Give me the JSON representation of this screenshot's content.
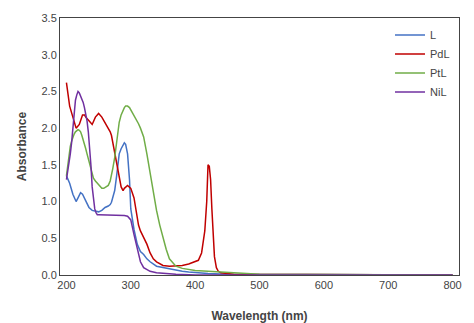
{
  "chart_data": {
    "type": "line",
    "xlabel": "Wavelength (nm)",
    "ylabel": "Absorbance",
    "xlim": [
      190,
      810
    ],
    "ylim": [
      0,
      3.5
    ],
    "xticks": [
      200,
      300,
      400,
      500,
      600,
      700,
      800
    ],
    "yticks": [
      {
        "value": 0,
        "label": "0.0"
      },
      0.5,
      {
        "value": 1,
        "label": "1.0"
      },
      1.5,
      {
        "value": 2,
        "label": "2.0"
      },
      2.5,
      {
        "value": 3,
        "label": "3.0"
      },
      3.5
    ],
    "grid": false,
    "legend": "upper right",
    "series": [
      {
        "name": "L",
        "color": "#4472C4",
        "x": [
          200,
          205,
          210,
          215,
          218,
          220,
          222,
          225,
          228,
          230,
          235,
          240,
          245,
          250,
          255,
          260,
          265,
          268,
          270,
          272,
          275,
          278,
          280,
          282,
          285,
          288,
          290,
          292,
          295,
          298,
          300,
          305,
          310,
          315,
          320,
          325,
          330,
          340,
          350,
          360,
          370,
          380,
          390,
          400,
          420,
          450,
          500,
          600,
          700,
          800
        ],
        "values": [
          1.35,
          1.25,
          1.1,
          1.0,
          1.05,
          1.1,
          1.12,
          1.1,
          1.05,
          1.0,
          0.92,
          0.88,
          0.87,
          0.86,
          0.88,
          0.92,
          0.94,
          0.96,
          0.99,
          1.05,
          1.15,
          1.35,
          1.55,
          1.65,
          1.72,
          1.78,
          1.8,
          1.78,
          1.65,
          1.3,
          0.9,
          0.62,
          0.42,
          0.32,
          0.28,
          0.22,
          0.18,
          0.12,
          0.1,
          0.08,
          0.06,
          0.05,
          0.04,
          0.03,
          0.02,
          0.01,
          0.01,
          0.0,
          0.0,
          0.0
        ]
      },
      {
        "name": "PdL",
        "color": "#C00000",
        "x": [
          200,
          205,
          210,
          215,
          220,
          222,
          225,
          228,
          230,
          235,
          240,
          245,
          250,
          255,
          260,
          265,
          268,
          270,
          272,
          275,
          278,
          280,
          282,
          285,
          288,
          290,
          295,
          300,
          305,
          308,
          310,
          312,
          315,
          318,
          320,
          325,
          330,
          335,
          340,
          345,
          350,
          360,
          370,
          380,
          390,
          395,
          400,
          405,
          410,
          415,
          418,
          420,
          422,
          424,
          426,
          428,
          430,
          433,
          436,
          440,
          445,
          450,
          460,
          470,
          490,
          500,
          550,
          600,
          700,
          800
        ],
        "values": [
          2.62,
          2.3,
          2.15,
          2.0,
          2.05,
          2.1,
          2.18,
          2.18,
          2.15,
          2.1,
          2.05,
          2.15,
          2.2,
          2.15,
          2.08,
          2.0,
          1.95,
          1.9,
          1.8,
          1.65,
          1.5,
          1.4,
          1.3,
          1.2,
          1.15,
          1.18,
          1.22,
          1.18,
          1.05,
          0.88,
          0.75,
          0.68,
          0.6,
          0.55,
          0.52,
          0.42,
          0.3,
          0.22,
          0.18,
          0.15,
          0.13,
          0.12,
          0.12,
          0.13,
          0.15,
          0.17,
          0.18,
          0.2,
          0.3,
          0.6,
          1.0,
          1.5,
          1.48,
          1.3,
          0.9,
          0.5,
          0.25,
          0.1,
          0.05,
          0.03,
          0.02,
          0.02,
          0.01,
          0.01,
          0.01,
          0.0,
          0.0,
          0.0,
          0.0,
          0.0
        ]
      },
      {
        "name": "PtL",
        "color": "#70AD47",
        "x": [
          200,
          202,
          204,
          206,
          208,
          210,
          212,
          214,
          216,
          218,
          220,
          222,
          224,
          226,
          228,
          230,
          232,
          235,
          238,
          240,
          242,
          245,
          248,
          250,
          252,
          255,
          258,
          260,
          262,
          265,
          268,
          270,
          272,
          275,
          278,
          280,
          282,
          285,
          288,
          290,
          292,
          295,
          298,
          300,
          302,
          305,
          308,
          310,
          312,
          315,
          318,
          320,
          325,
          330,
          335,
          340,
          345,
          350,
          355,
          360,
          370,
          380,
          390,
          400,
          420,
          450,
          480,
          500,
          550,
          600,
          700,
          800
        ],
        "values": [
          1.35,
          1.5,
          1.65,
          1.75,
          1.82,
          1.88,
          1.92,
          1.95,
          1.97,
          1.98,
          1.97,
          1.95,
          1.9,
          1.85,
          1.78,
          1.72,
          1.65,
          1.55,
          1.45,
          1.38,
          1.32,
          1.28,
          1.25,
          1.22,
          1.2,
          1.18,
          1.18,
          1.19,
          1.2,
          1.22,
          1.28,
          1.35,
          1.45,
          1.6,
          1.78,
          1.95,
          2.08,
          2.18,
          2.25,
          2.28,
          2.3,
          2.3,
          2.28,
          2.25,
          2.22,
          2.18,
          2.14,
          2.1,
          2.06,
          2.0,
          1.94,
          1.88,
          1.65,
          1.38,
          1.12,
          0.88,
          0.68,
          0.5,
          0.35,
          0.22,
          0.12,
          0.09,
          0.07,
          0.06,
          0.05,
          0.04,
          0.02,
          0.01,
          0.01,
          0.0,
          0.0,
          0.0
        ]
      },
      {
        "name": "NiL",
        "color": "#7030A0",
        "x": [
          200,
          202,
          204,
          206,
          208,
          210,
          212,
          214,
          216,
          218,
          220,
          221,
          222,
          223,
          224,
          225,
          226,
          228,
          230,
          232,
          234,
          236,
          238,
          240,
          242,
          244,
          246,
          248,
          250,
          255,
          260,
          265,
          270,
          275,
          280,
          285,
          290,
          295,
          300,
          305,
          310,
          315,
          320,
          325,
          330,
          340,
          350,
          360,
          370,
          400,
          450,
          500,
          600,
          700,
          800
        ],
        "values": [
          1.3,
          1.4,
          1.5,
          1.65,
          1.8,
          2.0,
          2.2,
          2.38,
          2.45,
          2.5,
          2.48,
          2.46,
          2.44,
          2.42,
          2.4,
          2.38,
          2.35,
          2.28,
          2.2,
          2.1,
          1.95,
          1.75,
          1.5,
          1.2,
          1.0,
          0.9,
          0.85,
          0.82,
          0.82,
          0.82,
          0.82,
          0.82,
          0.82,
          0.82,
          0.82,
          0.82,
          0.81,
          0.8,
          0.75,
          0.55,
          0.35,
          0.18,
          0.1,
          0.07,
          0.05,
          0.03,
          0.02,
          0.01,
          0.01,
          0.0,
          0.0,
          0.0,
          0.0,
          0.0,
          0.0
        ]
      }
    ]
  }
}
